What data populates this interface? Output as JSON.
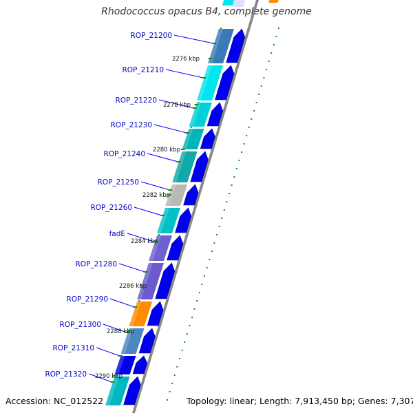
{
  "title": "Rhodococcus opacus B4, complete genome",
  "accession_text": "Accession: NC_012522",
  "summary_text": "Topology: linear; Length: 7,913,450 bp; Genes: 7,307",
  "colors": {
    "gene_label": "#0000c8",
    "leader_line": "#0000ff",
    "cds_arrow": "#0000ee",
    "tick_green": "#1a8a1a",
    "backbone": "#888888"
  },
  "diagram": {
    "kbp_ticks": [
      {
        "label": "2276 kbp"
      },
      {
        "label": "2278 kbp"
      },
      {
        "label": "2280 kbp"
      },
      {
        "label": "2282 kbp"
      },
      {
        "label": "2284 kbp"
      },
      {
        "label": "2286 kbp"
      },
      {
        "label": "2288 kbp"
      },
      {
        "label": "2290 kbp"
      }
    ],
    "genes": [
      {
        "name": "ROP_21200",
        "color": "#3a7ab8"
      },
      {
        "name": "ROP_21210",
        "color": "#00e5ee"
      },
      {
        "name": "ROP_21220",
        "color": "#00d0d8"
      },
      {
        "name": "ROP_21230",
        "color": "#00b4b8"
      },
      {
        "name": "ROP_21240",
        "color": "#10a8a8"
      },
      {
        "name": "ROP_21250",
        "color": "#b8b8b8"
      },
      {
        "name": "ROP_21260",
        "color": "#00c0c8"
      },
      {
        "name": "fadE",
        "color": "#7060d0"
      },
      {
        "name": "ROP_21280",
        "color": "#6a5acd"
      },
      {
        "name": "ROP_21290",
        "color": "#ff8c00"
      },
      {
        "name": "ROP_21300",
        "color": "#4a88c0"
      },
      {
        "name": "ROP_21310",
        "color": "#0000ee"
      },
      {
        "name": "ROP_21320",
        "color": "#00b8c0"
      }
    ]
  }
}
